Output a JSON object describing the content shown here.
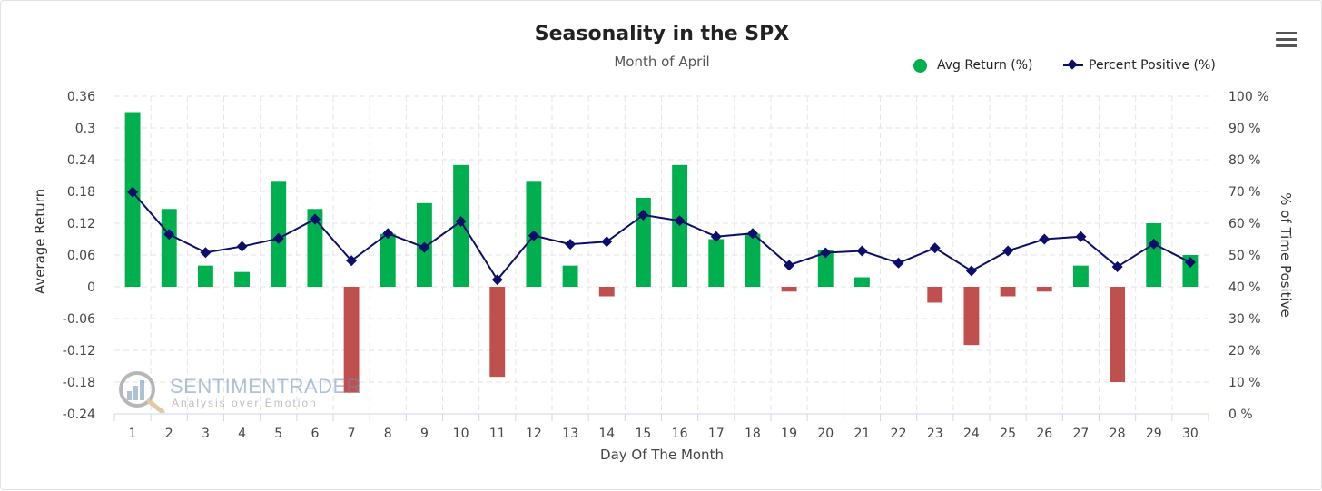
{
  "chart_data": {
    "type": "bar",
    "title": "Seasonality in the SPX",
    "subtitle": "Month of April",
    "xlabel": "Day Of The Month",
    "ylabel": "Average Return",
    "y2label": "% of Time Positive",
    "categories": [
      "1",
      "2",
      "3",
      "4",
      "5",
      "6",
      "7",
      "8",
      "9",
      "10",
      "11",
      "12",
      "13",
      "14",
      "15",
      "16",
      "17",
      "18",
      "19",
      "20",
      "21",
      "22",
      "23",
      "24",
      "25",
      "26",
      "27",
      "28",
      "29",
      "30"
    ],
    "ylim": [
      -0.24,
      0.36
    ],
    "y2lim": [
      0,
      100
    ],
    "yticks": [
      "0.36",
      "0.3",
      "0.24",
      "0.18",
      "0.12",
      "0.06",
      "0",
      "-0.06",
      "-0.12",
      "-0.18",
      "-0.24"
    ],
    "y2ticks": [
      "100 %",
      "90 %",
      "80 %",
      "70 %",
      "60 %",
      "50 %",
      "40 %",
      "30 %",
      "20 %",
      "10 %",
      "0 %"
    ],
    "grid": true,
    "legend_position": "top-right",
    "series": [
      {
        "name": "Avg Return (%)",
        "type": "bar",
        "axis": "left",
        "positive_color": "#00b04f",
        "negative_color": "#c0504d",
        "values": [
          0.33,
          0.147,
          0.04,
          0.028,
          0.2,
          0.147,
          -0.2,
          0.1,
          0.158,
          0.23,
          -0.17,
          0.2,
          0.04,
          -0.018,
          0.168,
          0.23,
          0.09,
          0.1,
          -0.009,
          0.07,
          0.018,
          0,
          -0.03,
          -0.11,
          -0.018,
          -0.009,
          0.04,
          -0.18,
          0.12,
          0.06
        ]
      },
      {
        "name": "Percent Positive (%)",
        "type": "line",
        "axis": "right",
        "color": "#0d0d6b",
        "values": [
          69.8,
          56.5,
          50.8,
          52.7,
          55.2,
          61.3,
          48.2,
          56.8,
          52.4,
          60.6,
          42.2,
          56.1,
          53.4,
          54.2,
          62.6,
          60.8,
          55.8,
          56.8,
          46.8,
          50.7,
          51.3,
          47.5,
          52.2,
          45,
          51.3,
          55,
          55.8,
          46.3,
          53.5,
          47.7
        ]
      }
    ]
  },
  "watermark": {
    "brand": "SENTIMENTRADER",
    "tagline": "Analysis over Emotion"
  },
  "menu_icon": "hamburger-menu-icon"
}
